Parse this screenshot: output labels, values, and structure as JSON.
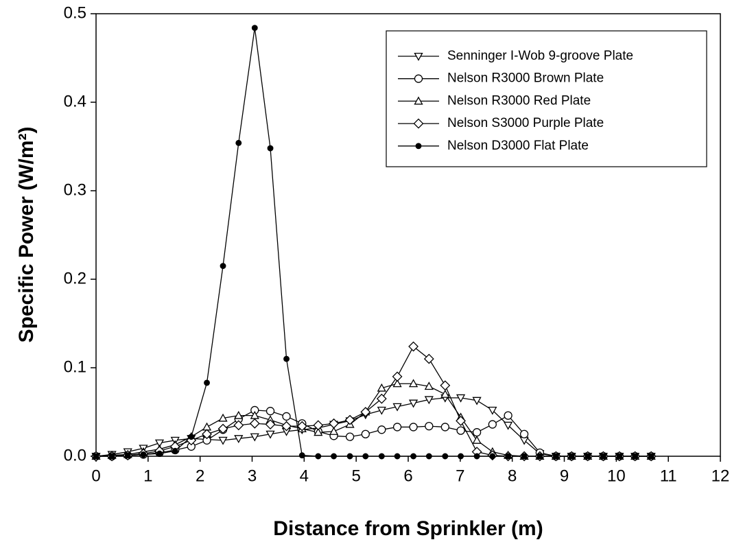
{
  "chart_data": {
    "type": "line",
    "xlabel": "Distance from Sprinkler (m)",
    "ylabel": "Specific Power (W/m²)",
    "x": [
      0,
      0.305,
      0.61,
      0.91,
      1.22,
      1.52,
      1.83,
      2.13,
      2.44,
      2.74,
      3.05,
      3.35,
      3.66,
      3.96,
      4.27,
      4.57,
      4.88,
      5.18,
      5.49,
      5.79,
      6.1,
      6.4,
      6.71,
      7.01,
      7.32,
      7.62,
      7.92,
      8.23,
      8.53,
      8.84,
      9.14,
      9.45,
      9.75,
      10.06,
      10.36,
      10.67
    ],
    "series": [
      {
        "name": "Senninger I-Wob 9-groove Plate",
        "color": "#000000",
        "marker": "triangle-down",
        "values": [
          0,
          0.002,
          0.005,
          0.009,
          0.015,
          0.018,
          0.02,
          0.019,
          0.018,
          0.02,
          0.022,
          0.025,
          0.028,
          0.03,
          0.032,
          0.036,
          0.04,
          0.047,
          0.052,
          0.056,
          0.06,
          0.064,
          0.066,
          0.066,
          0.063,
          0.052,
          0.035,
          0.018,
          0.003,
          0,
          0,
          0,
          0,
          0,
          0,
          0
        ]
      },
      {
        "name": "Nelson R3000 Brown Plate",
        "color": "#000000",
        "marker": "circle",
        "values": [
          0,
          0,
          0.001,
          0.002,
          0.004,
          0.007,
          0.011,
          0.018,
          0.03,
          0.042,
          0.052,
          0.051,
          0.045,
          0.037,
          0.028,
          0.023,
          0.022,
          0.025,
          0.03,
          0.033,
          0.033,
          0.034,
          0.033,
          0.029,
          0.027,
          0.036,
          0.046,
          0.025,
          0.004,
          0,
          0,
          0,
          0,
          0,
          0,
          0
        ]
      },
      {
        "name": "Nelson R3000 Red Plate",
        "color": "#000000",
        "marker": "triangle-up",
        "values": [
          0,
          0.001,
          0.002,
          0.005,
          0.008,
          0.013,
          0.022,
          0.033,
          0.043,
          0.046,
          0.046,
          0.041,
          0.035,
          0.031,
          0.027,
          0.028,
          0.036,
          0.05,
          0.077,
          0.082,
          0.082,
          0.079,
          0.07,
          0.044,
          0.018,
          0.005,
          0.001,
          0,
          0,
          0,
          0,
          0,
          0,
          0,
          0,
          0
        ]
      },
      {
        "name": "Nelson S3000 Purple Plate",
        "color": "#000000",
        "marker": "diamond",
        "values": [
          0,
          0,
          0.001,
          0.003,
          0.006,
          0.011,
          0.018,
          0.025,
          0.031,
          0.035,
          0.037,
          0.036,
          0.034,
          0.034,
          0.035,
          0.037,
          0.041,
          0.05,
          0.065,
          0.09,
          0.124,
          0.11,
          0.08,
          0.04,
          0.005,
          0.001,
          0,
          0,
          0,
          0,
          0,
          0,
          0,
          0,
          0,
          0
        ]
      },
      {
        "name": "Nelson D3000 Flat Plate",
        "color": "#000000",
        "marker": "circle-filled",
        "values": [
          0,
          0,
          0.001,
          0.002,
          0.003,
          0.006,
          0.022,
          0.083,
          0.215,
          0.354,
          0.484,
          0.348,
          0.11,
          0.001,
          0,
          0,
          0,
          0,
          0,
          0,
          0,
          0,
          0,
          0,
          0,
          0,
          0,
          0,
          0,
          0,
          0,
          0,
          0,
          0,
          0,
          0
        ]
      }
    ],
    "xlim": [
      0,
      12
    ],
    "xticks": [
      0,
      1,
      2,
      3,
      4,
      5,
      6,
      7,
      8,
      9,
      10,
      11,
      12
    ],
    "ylim": [
      0,
      0.5
    ],
    "yticks": [
      {
        "value": 0,
        "label": "0.0"
      },
      0.1,
      0.2,
      0.3,
      0.4,
      0.5
    ],
    "legend": "upper right"
  }
}
